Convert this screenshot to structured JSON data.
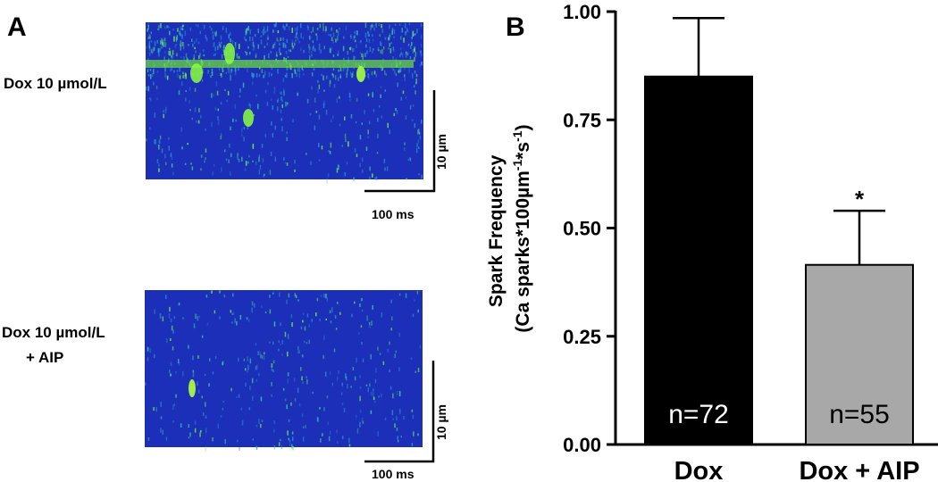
{
  "panel_a": {
    "label": "A",
    "images": [
      {
        "label_line1": "Dox 10  µmol/L",
        "label_line2": "",
        "scale_y": "10 µm",
        "scale_x": "100 ms"
      },
      {
        "label_line1": "Dox 10 µmol/L",
        "label_line2": "+ AIP",
        "scale_y": "10 µm",
        "scale_x": "100 ms"
      }
    ],
    "colors": {
      "background": "#1b2fb8",
      "spark": "#7cff3a"
    }
  },
  "panel_b": {
    "label": "B"
  },
  "chart_data": {
    "type": "bar",
    "title": "",
    "xlabel": "",
    "ylabel_line1": "Spark Frequency",
    "ylabel_line2": "(Ca sparks*100µm",
    "ylabel_sup1": "-1",
    "ylabel_mid": "*s",
    "ylabel_sup2": "-1",
    "ylabel_end": ")",
    "ylim": [
      0,
      1.0
    ],
    "yticks": [
      "0.00",
      "0.25",
      "0.50",
      "0.75",
      "1.00"
    ],
    "ytick_values": [
      0,
      0.25,
      0.5,
      0.75,
      1.0
    ],
    "categories": [
      "Dox",
      "Dox + AIP"
    ],
    "values": [
      0.85,
      0.415
    ],
    "errors": [
      0.135,
      0.125
    ],
    "bar_colors": [
      "#000000",
      "#a8a8a8"
    ],
    "bar_labels": [
      "n=72",
      "n=55"
    ],
    "bar_label_colors": [
      "#ffffff",
      "#000000"
    ],
    "annotations": [
      "",
      "*"
    ],
    "grid": false
  }
}
